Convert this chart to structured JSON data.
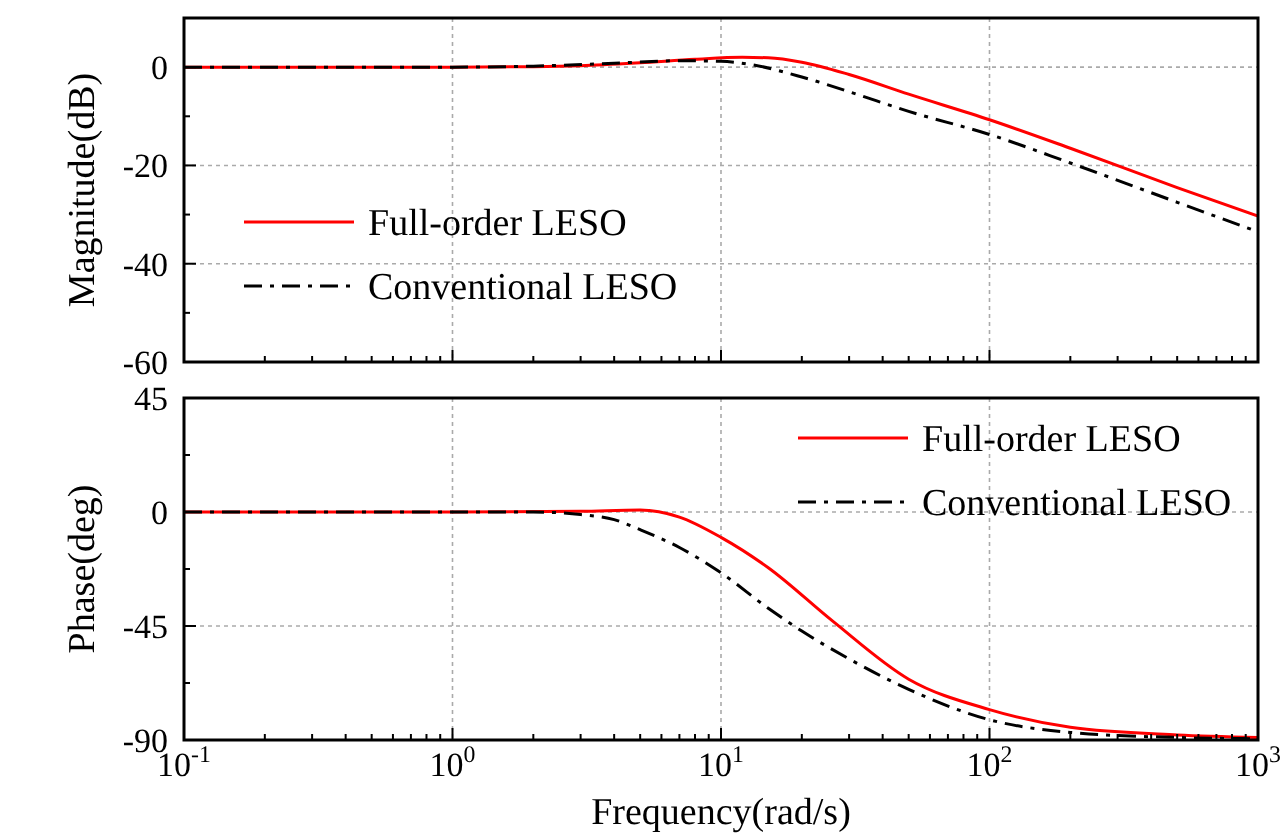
{
  "chart_data": [
    {
      "type": "line",
      "ylabel": "Magnitude(dB)",
      "log": "x",
      "grid": true,
      "legend": "bottom left",
      "tick_labels": "y",
      "xlim": [
        0.1,
        1000
      ],
      "xticks": [
        {
          "value": 0.1,
          "label": null
        },
        {
          "value": 1,
          "label": null
        },
        {
          "value": 10,
          "label": null
        },
        {
          "value": 100,
          "label": null
        },
        {
          "value": 1000,
          "label": null
        }
      ],
      "ylim": [
        -60,
        10
      ],
      "yticks": [
        -60,
        -40,
        -20,
        0
      ],
      "series": [
        {
          "name": "Full-order LESO",
          "color": "#ff0000",
          "line_style": "solid",
          "x": [
            0.1,
            1,
            2,
            3,
            5,
            8,
            12,
            15,
            20,
            30,
            50,
            100,
            200,
            500,
            1000
          ],
          "values": [
            0,
            0,
            0.1,
            0.3,
            0.9,
            1.6,
            2,
            1.9,
            1,
            -1.5,
            -5.5,
            -10.7,
            -16.5,
            -24.5,
            -30.3
          ]
        },
        {
          "name": "Conventional LESO",
          "color": "#000000",
          "line_style": "dashed",
          "x": [
            0.1,
            1,
            2,
            4,
            7,
            10,
            13,
            20,
            30,
            50,
            100,
            200,
            500,
            1000
          ],
          "values": [
            0,
            0,
            0.2,
            0.8,
            1.3,
            1.2,
            0.5,
            -2,
            -5,
            -9,
            -13.7,
            -19.5,
            -27.5,
            -33.5
          ]
        }
      ]
    },
    {
      "type": "line",
      "ylabel": "Phase(deg)",
      "xlabel": "Frequency(rad/s)",
      "log": "x",
      "grid": true,
      "legend": "top right",
      "xlim": [
        0.1,
        1000
      ],
      "xticks": [
        {
          "value": 0.1,
          "label": "10$^{-1}$"
        },
        {
          "value": 1,
          "label": "10$^{0}$"
        },
        {
          "value": 10,
          "label": "10$^{1}$"
        },
        {
          "value": 100,
          "label": "10$^{2}$"
        },
        {
          "value": 1000,
          "label": "10$^{3}$"
        }
      ],
      "ylim": [
        -90,
        45
      ],
      "yticks": [
        -90,
        -45,
        0,
        45
      ],
      "series": [
        {
          "name": "Full-order LESO",
          "color": "#ff0000",
          "line_style": "solid",
          "x": [
            0.1,
            1,
            3,
            5,
            7,
            10,
            15,
            26,
            50,
            100,
            200,
            500,
            1000
          ],
          "values": [
            0,
            0,
            0.3,
            0.8,
            -2,
            -10,
            -22,
            -43,
            -66,
            -78,
            -85,
            -88,
            -89
          ]
        },
        {
          "name": "Conventional LESO",
          "color": "#000000",
          "line_style": "dashed",
          "x": [
            0.1,
            1,
            2,
            3,
            4,
            5,
            7,
            10,
            15,
            20,
            30,
            50,
            100,
            200,
            500,
            1000
          ],
          "values": [
            0,
            0,
            0,
            -1,
            -3,
            -7,
            -14,
            -24,
            -38,
            -47,
            -58,
            -70,
            -82,
            -87,
            -89,
            -89.5
          ]
        }
      ]
    }
  ]
}
